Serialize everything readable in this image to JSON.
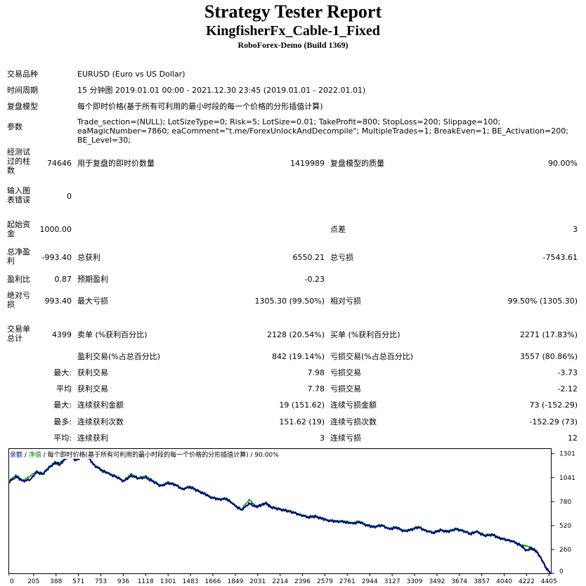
{
  "header": {
    "title": "Strategy Tester Report",
    "subtitle": "KingfisherFx_Cable-1_Fixed",
    "server": "RoboForex-Demo (Build 1369)"
  },
  "settings": {
    "symbol_label": "交易品种",
    "symbol_value": "EURUSD (Euro vs US Dollar)",
    "period_label": "时间周期",
    "period_value": "15 分钟图 2019.01.01 00:00 - 2021.12.30 23:45 (2019.01.01 - 2022.01.01)",
    "model_label": "复盘模型",
    "model_value": "每个即时价格(基于所有可利用的最小时段的每一个价格的分形插值计算)",
    "params_label": "参数",
    "params_value": "Trade_section=(NULL); LotSizeType=0; Risk=5; LotSize=0.01; TakeProfit=800; StopLoss=200; Slippage=100; eaMagicNumber=7860; eaComment=\"t.me/ForexUnlockAndDecompile\"; MultipleTrades=1; BreakEven=1; BE_Activation=200; BE_Level=30;"
  },
  "stats": {
    "bars_label": "经测试过的柱数",
    "bars_value": "74646",
    "ticks_label": "用于复盘的即时价数量",
    "ticks_value": "1419989",
    "quality_label": "复盘模型的质量",
    "quality_value": "90.00%",
    "mismatch_label": "输入图表错误",
    "mismatch_value": "0",
    "deposit_label": "起始资金",
    "deposit_value": "1000.00",
    "spread_label": "点差",
    "spread_value": "3",
    "net_profit_label": "总净盈利",
    "net_profit_value": "-993.40",
    "gross_profit_label": "总获利",
    "gross_profit_value": "6550.21",
    "gross_loss_label": "总亏损",
    "gross_loss_value": "-7543.61",
    "profit_factor_label": "盈利比",
    "profit_factor_value": "0.87",
    "expected_payoff_label": "预期盈利",
    "expected_payoff_value": "-0.23",
    "abs_drawdown_label": "绝对亏损",
    "abs_drawdown_value": "993.40",
    "max_drawdown_label": "最大亏损",
    "max_drawdown_value": "1305.30 (99.50%)",
    "rel_drawdown_label": "相对亏损",
    "rel_drawdown_value": "99.50% (1305.30)",
    "total_trades_label": "交易单总计",
    "total_trades_value": "4399",
    "short_label": "卖单 (%获利百分比)",
    "short_value": "2128 (20.54%)",
    "long_label": "买单 (%获利百分比)",
    "long_value": "2271 (17.83%)",
    "profit_trades_label": "盈利交易(%占总百分比)",
    "profit_trades_value": "842 (19.14%)",
    "loss_trades_label": "亏损交易(%占总百分比)",
    "loss_trades_value": "3557 (80.86%)",
    "largest_prefix": "最大:",
    "largest_profit_label": "获利交易",
    "largest_profit_value": "7.98",
    "largest_loss_label": "亏损交易",
    "largest_loss_value": "-3.73",
    "average_prefix": "平均",
    "average_profit_label": "获利交易",
    "average_profit_value": "7.78",
    "average_loss_label": "亏损交易",
    "average_loss_value": "-2.12",
    "max_consec_prefix": "最大:",
    "max_consec_wins_label": "连续获利金额",
    "max_consec_wins_value": "19 (151.62)",
    "max_consec_losses_label": "连续亏损金额",
    "max_consec_losses_value": "73 (-152.29)",
    "maximal_prefix": "最多:",
    "maximal_consec_profit_label": "连续获利次数",
    "maximal_consec_profit_value": "151.62 (19)",
    "maximal_consec_loss_label": "连续亏损次数",
    "maximal_consec_loss_value": "-152.29 (73)",
    "avg_consec_prefix": "平均:",
    "avg_consec_wins_label": "连续获利",
    "avg_consec_wins_value": "3",
    "avg_consec_losses_label": "连续亏损",
    "avg_consec_losses_value": "12"
  },
  "chart_caption": {
    "balance": "余额",
    "sep1": " / ",
    "equity": "净值",
    "rest": " / 每个即时价格(基于所有可利用的最小时段的每一个价格的分形插值计算) / 90.00%"
  },
  "chart_data": {
    "type": "line",
    "x_ticks": [
      0,
      205,
      388,
      571,
      753,
      936,
      1118,
      1301,
      1483,
      1666,
      1849,
      2031,
      2214,
      2396,
      2579,
      2761,
      2944,
      3127,
      3309,
      3492,
      3674,
      3857,
      4040,
      4222,
      4405
    ],
    "y_ticks": [
      0,
      260,
      520,
      780,
      1041,
      1301
    ],
    "xlim": [
      0,
      4420
    ],
    "ylim": [
      0,
      1360
    ],
    "series": [
      {
        "color": "#00008b",
        "x": [
          0,
          60,
          120,
          180,
          230,
          280,
          330,
          380,
          420,
          460,
          500,
          550,
          600,
          650,
          700,
          760,
          820,
          880,
          940,
          1000,
          1060,
          1120,
          1180,
          1240,
          1300,
          1360,
          1420,
          1480,
          1540,
          1600,
          1660,
          1720,
          1780,
          1840,
          1900,
          1960,
          2020,
          2060,
          2100,
          2140,
          2200,
          2260,
          2320,
          2380,
          2440,
          2500,
          2560,
          2620,
          2680,
          2740,
          2800,
          2860,
          2920,
          2980,
          3040,
          3100,
          3160,
          3220,
          3280,
          3340,
          3400,
          3460,
          3520,
          3580,
          3640,
          3700,
          3760,
          3820,
          3880,
          3940,
          4000,
          4060,
          4120,
          4180,
          4220,
          4260,
          4300,
          4340,
          4380,
          4420
        ],
        "values": [
          990,
          1050,
          1000,
          1020,
          1100,
          1080,
          1150,
          1200,
          1180,
          1240,
          1280,
          1230,
          1270,
          1260,
          1170,
          1120,
          1080,
          1050,
          1000,
          1060,
          1030,
          1040,
          1000,
          950,
          980,
          960,
          910,
          940,
          900,
          860,
          820,
          800,
          810,
          740,
          690,
          760,
          720,
          740,
          760,
          720,
          700,
          680,
          660,
          630,
          610,
          620,
          590,
          570,
          560,
          560,
          540,
          560,
          520,
          500,
          520,
          480,
          500,
          460,
          470,
          500,
          460,
          440,
          470,
          450,
          480,
          460,
          430,
          450,
          410,
          420,
          380,
          360,
          340,
          300,
          250,
          270,
          240,
          160,
          60,
          0
        ]
      },
      {
        "color": "#00a000",
        "x": [
          0,
          60,
          120,
          180,
          230,
          280,
          330,
          380,
          420,
          460,
          500,
          550,
          600,
          650,
          700,
          760,
          820,
          880,
          940,
          1000,
          1060,
          1120,
          1180,
          1240,
          1300,
          1360,
          1420,
          1480,
          1540,
          1600,
          1660,
          1720,
          1780,
          1840,
          1900,
          1960,
          2020,
          2060,
          2100,
          2140,
          2200,
          2260,
          2320,
          2380,
          2440,
          2500,
          2560,
          2620,
          2680,
          2740,
          2800,
          2860,
          2920,
          2980,
          3040,
          3100,
          3160,
          3220,
          3280,
          3340,
          3400,
          3460,
          3520,
          3580,
          3640,
          3700,
          3760,
          3820,
          3880,
          3940,
          4000,
          4060,
          4120,
          4180,
          4220,
          4260,
          4300,
          4340,
          4380,
          4420
        ],
        "values": [
          1000,
          1070,
          1010,
          1060,
          1110,
          1090,
          1160,
          1210,
          1200,
          1250,
          1300,
          1240,
          1280,
          1270,
          1180,
          1130,
          1090,
          1060,
          1010,
          1080,
          1040,
          1060,
          1010,
          960,
          990,
          970,
          920,
          950,
          910,
          870,
          830,
          810,
          820,
          750,
          700,
          800,
          730,
          750,
          770,
          730,
          710,
          690,
          670,
          640,
          620,
          630,
          600,
          580,
          570,
          570,
          550,
          570,
          530,
          510,
          530,
          490,
          510,
          470,
          480,
          510,
          470,
          450,
          480,
          460,
          490,
          470,
          440,
          460,
          420,
          430,
          390,
          370,
          350,
          310,
          300,
          280,
          250,
          170,
          70,
          0
        ]
      }
    ]
  }
}
